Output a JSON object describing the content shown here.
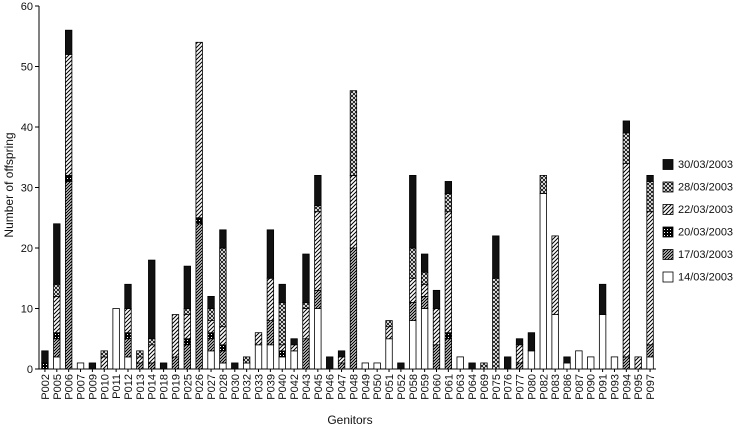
{
  "chart_data": {
    "type": "bar",
    "stacked": true,
    "title": "",
    "xlabel": "Genitors",
    "ylabel": "Number of offspring",
    "ylim": [
      0,
      60
    ],
    "yticks": [
      0,
      10,
      20,
      30,
      40,
      50,
      60
    ],
    "grid": false,
    "legend_position": "right",
    "categories": [
      "P002",
      "P005",
      "P006",
      "P007",
      "P009",
      "P010",
      "P011",
      "P012",
      "P013",
      "P014",
      "P018",
      "P019",
      "P025",
      "P026",
      "P027",
      "P028",
      "P030",
      "P032",
      "P033",
      "P039",
      "P040",
      "P042",
      "P043",
      "P045",
      "P046",
      "P047",
      "P048",
      "P049",
      "P050",
      "P051",
      "P052",
      "P058",
      "P059",
      "P060",
      "P061",
      "P063",
      "P064",
      "P069",
      "P075",
      "P076",
      "P077",
      "P080",
      "P082",
      "P083",
      "P086",
      "P087",
      "P090",
      "P091",
      "P093",
      "P094",
      "P095",
      "P097"
    ],
    "series": [
      {
        "name": "14/03/2003",
        "pattern": "white",
        "values": [
          0,
          2,
          0,
          1,
          0,
          0,
          10,
          2,
          0,
          0,
          0,
          0,
          0,
          0,
          3,
          1,
          0,
          1,
          4,
          4,
          2,
          3,
          0,
          10,
          0,
          0,
          0,
          1,
          1,
          5,
          0,
          8,
          10,
          0,
          0,
          2,
          0,
          0,
          0,
          0,
          0,
          3,
          29,
          9,
          1,
          3,
          2,
          9,
          2,
          0,
          0,
          2
        ]
      },
      {
        "name": "17/03/2003",
        "pattern": "dense-diagonal",
        "values": [
          0,
          3,
          31,
          0,
          0,
          0,
          0,
          3,
          1,
          1,
          0,
          2,
          4,
          24,
          2,
          2,
          0,
          0,
          0,
          4,
          0,
          0,
          5,
          3,
          0,
          1,
          20,
          0,
          0,
          0,
          0,
          3,
          2,
          4,
          5,
          0,
          0,
          0,
          0,
          0,
          1,
          0,
          0,
          0,
          0,
          0,
          0,
          0,
          0,
          2,
          0,
          2
        ]
      },
      {
        "name": "20/03/2003",
        "pattern": "dotted",
        "values": [
          1,
          1,
          1,
          0,
          0,
          0,
          0,
          1,
          0,
          0,
          0,
          0,
          1,
          1,
          1,
          1,
          0,
          0,
          0,
          0,
          1,
          0,
          0,
          0,
          0,
          0,
          0,
          0,
          0,
          0,
          0,
          0,
          0,
          0,
          1,
          0,
          0,
          0,
          0,
          0,
          0,
          0,
          0,
          0,
          0,
          0,
          0,
          0,
          0,
          0,
          0,
          0
        ]
      },
      {
        "name": "22/03/2003",
        "pattern": "diagonal",
        "values": [
          0,
          6,
          20,
          0,
          0,
          2,
          0,
          4,
          1,
          3,
          0,
          7,
          4,
          29,
          2,
          3,
          0,
          0,
          2,
          7,
          1,
          1,
          5,
          13,
          0,
          1,
          12,
          0,
          0,
          2,
          0,
          4,
          2,
          6,
          20,
          0,
          0,
          0,
          0,
          0,
          3,
          0,
          0,
          13,
          0,
          0,
          0,
          0,
          0,
          32,
          2,
          22
        ]
      },
      {
        "name": "28/03/2003",
        "pattern": "crosshatch",
        "values": [
          0,
          2,
          0,
          0,
          0,
          1,
          0,
          0,
          1,
          1,
          0,
          0,
          1,
          0,
          2,
          13,
          0,
          1,
          0,
          0,
          7,
          0,
          1,
          1,
          0,
          0,
          14,
          0,
          0,
          1,
          0,
          5,
          2,
          0,
          3,
          0,
          0,
          1,
          15,
          0,
          0,
          0,
          3,
          0,
          0,
          0,
          0,
          0,
          0,
          5,
          0,
          5
        ]
      },
      {
        "name": "30/03/2003",
        "pattern": "black",
        "values": [
          2,
          10,
          4,
          0,
          1,
          0,
          0,
          4,
          0,
          13,
          1,
          0,
          7,
          0,
          2,
          3,
          1,
          0,
          0,
          8,
          3,
          1,
          8,
          5,
          2,
          1,
          0,
          0,
          0,
          0,
          1,
          12,
          3,
          3,
          2,
          0,
          1,
          0,
          7,
          2,
          1,
          3,
          0,
          0,
          1,
          0,
          0,
          5,
          0,
          2,
          0,
          1
        ]
      }
    ]
  }
}
